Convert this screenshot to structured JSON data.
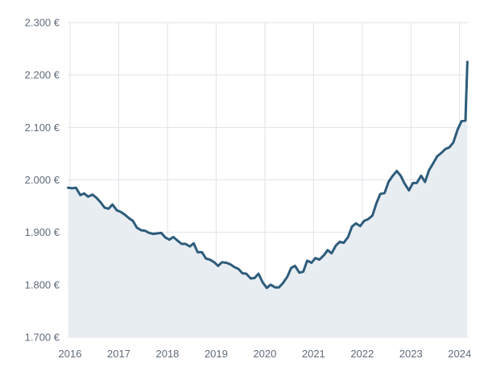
{
  "chart_data": {
    "type": "area",
    "y_tick_labels": [
      "2.300 €",
      "2.200 €",
      "2.100 €",
      "2.000 €",
      "1.900 €",
      "1.800 €",
      "1.700 €"
    ],
    "y_ticks": [
      2300,
      2200,
      2100,
      2000,
      1900,
      1800,
      1700
    ],
    "x_tick_labels": [
      "2016",
      "2017",
      "2018",
      "2019",
      "2020",
      "2021",
      "2022",
      "2023",
      "2024"
    ],
    "x_ticks": [
      2016,
      2017,
      2018,
      2019,
      2020,
      2021,
      2022,
      2023,
      2024
    ],
    "xlim": [
      2015.95,
      2024.17
    ],
    "ylim": [
      1700,
      2300
    ],
    "grid": true,
    "colors": {
      "line": "#2e5c7b",
      "fill": "#e8edf2",
      "grid": "#dfe3e8",
      "axis_text": "#5f6b7a"
    },
    "x": [
      2015.96,
      2016.04,
      2016.12,
      2016.21,
      2016.29,
      2016.37,
      2016.46,
      2016.54,
      2016.62,
      2016.71,
      2016.79,
      2016.87,
      2016.96,
      2017.04,
      2017.12,
      2017.21,
      2017.29,
      2017.37,
      2017.46,
      2017.54,
      2017.62,
      2017.71,
      2017.79,
      2017.87,
      2017.96,
      2018.04,
      2018.12,
      2018.21,
      2018.29,
      2018.37,
      2018.46,
      2018.54,
      2018.62,
      2018.71,
      2018.79,
      2018.87,
      2018.96,
      2019.04,
      2019.12,
      2019.21,
      2019.29,
      2019.37,
      2019.46,
      2019.54,
      2019.62,
      2019.71,
      2019.79,
      2019.87,
      2019.96,
      2020.04,
      2020.12,
      2020.21,
      2020.29,
      2020.37,
      2020.46,
      2020.54,
      2020.62,
      2020.71,
      2020.79,
      2020.87,
      2020.96,
      2021.04,
      2021.12,
      2021.21,
      2021.29,
      2021.37,
      2021.46,
      2021.54,
      2021.62,
      2021.71,
      2021.79,
      2021.87,
      2021.96,
      2022.04,
      2022.12,
      2022.21,
      2022.29,
      2022.37,
      2022.46,
      2022.54,
      2022.62,
      2022.71,
      2022.79,
      2022.87,
      2022.96,
      2023.04,
      2023.12,
      2023.21,
      2023.29,
      2023.37,
      2023.46,
      2023.54,
      2023.62,
      2023.71,
      2023.79,
      2023.87,
      2023.96,
      2024.04,
      2024.12,
      2024.16
    ],
    "series": [
      {
        "values": [
          1985,
          1984,
          1985,
          1971,
          1974,
          1968,
          1972,
          1966,
          1958,
          1947,
          1945,
          1953,
          1942,
          1939,
          1934,
          1927,
          1922,
          1909,
          1904,
          1903,
          1899,
          1897,
          1898,
          1899,
          1890,
          1886,
          1891,
          1884,
          1878,
          1878,
          1873,
          1879,
          1862,
          1862,
          1850,
          1848,
          1843,
          1836,
          1843,
          1842,
          1839,
          1834,
          1830,
          1822,
          1821,
          1812,
          1813,
          1821,
          1804,
          1794,
          1800,
          1795,
          1795,
          1803,
          1815,
          1832,
          1836,
          1823,
          1825,
          1846,
          1842,
          1851,
          1848,
          1856,
          1866,
          1860,
          1875,
          1882,
          1880,
          1891,
          1911,
          1917,
          1912,
          1922,
          1925,
          1932,
          1955,
          1973,
          1975,
          1996,
          2007,
          2017,
          2008,
          1993,
          1980,
          1994,
          1994,
          2008,
          1996,
          2018,
          2032,
          2045,
          2051,
          2059,
          2062,
          2071,
          2096,
          2112,
          2113,
          2225
        ]
      }
    ]
  }
}
